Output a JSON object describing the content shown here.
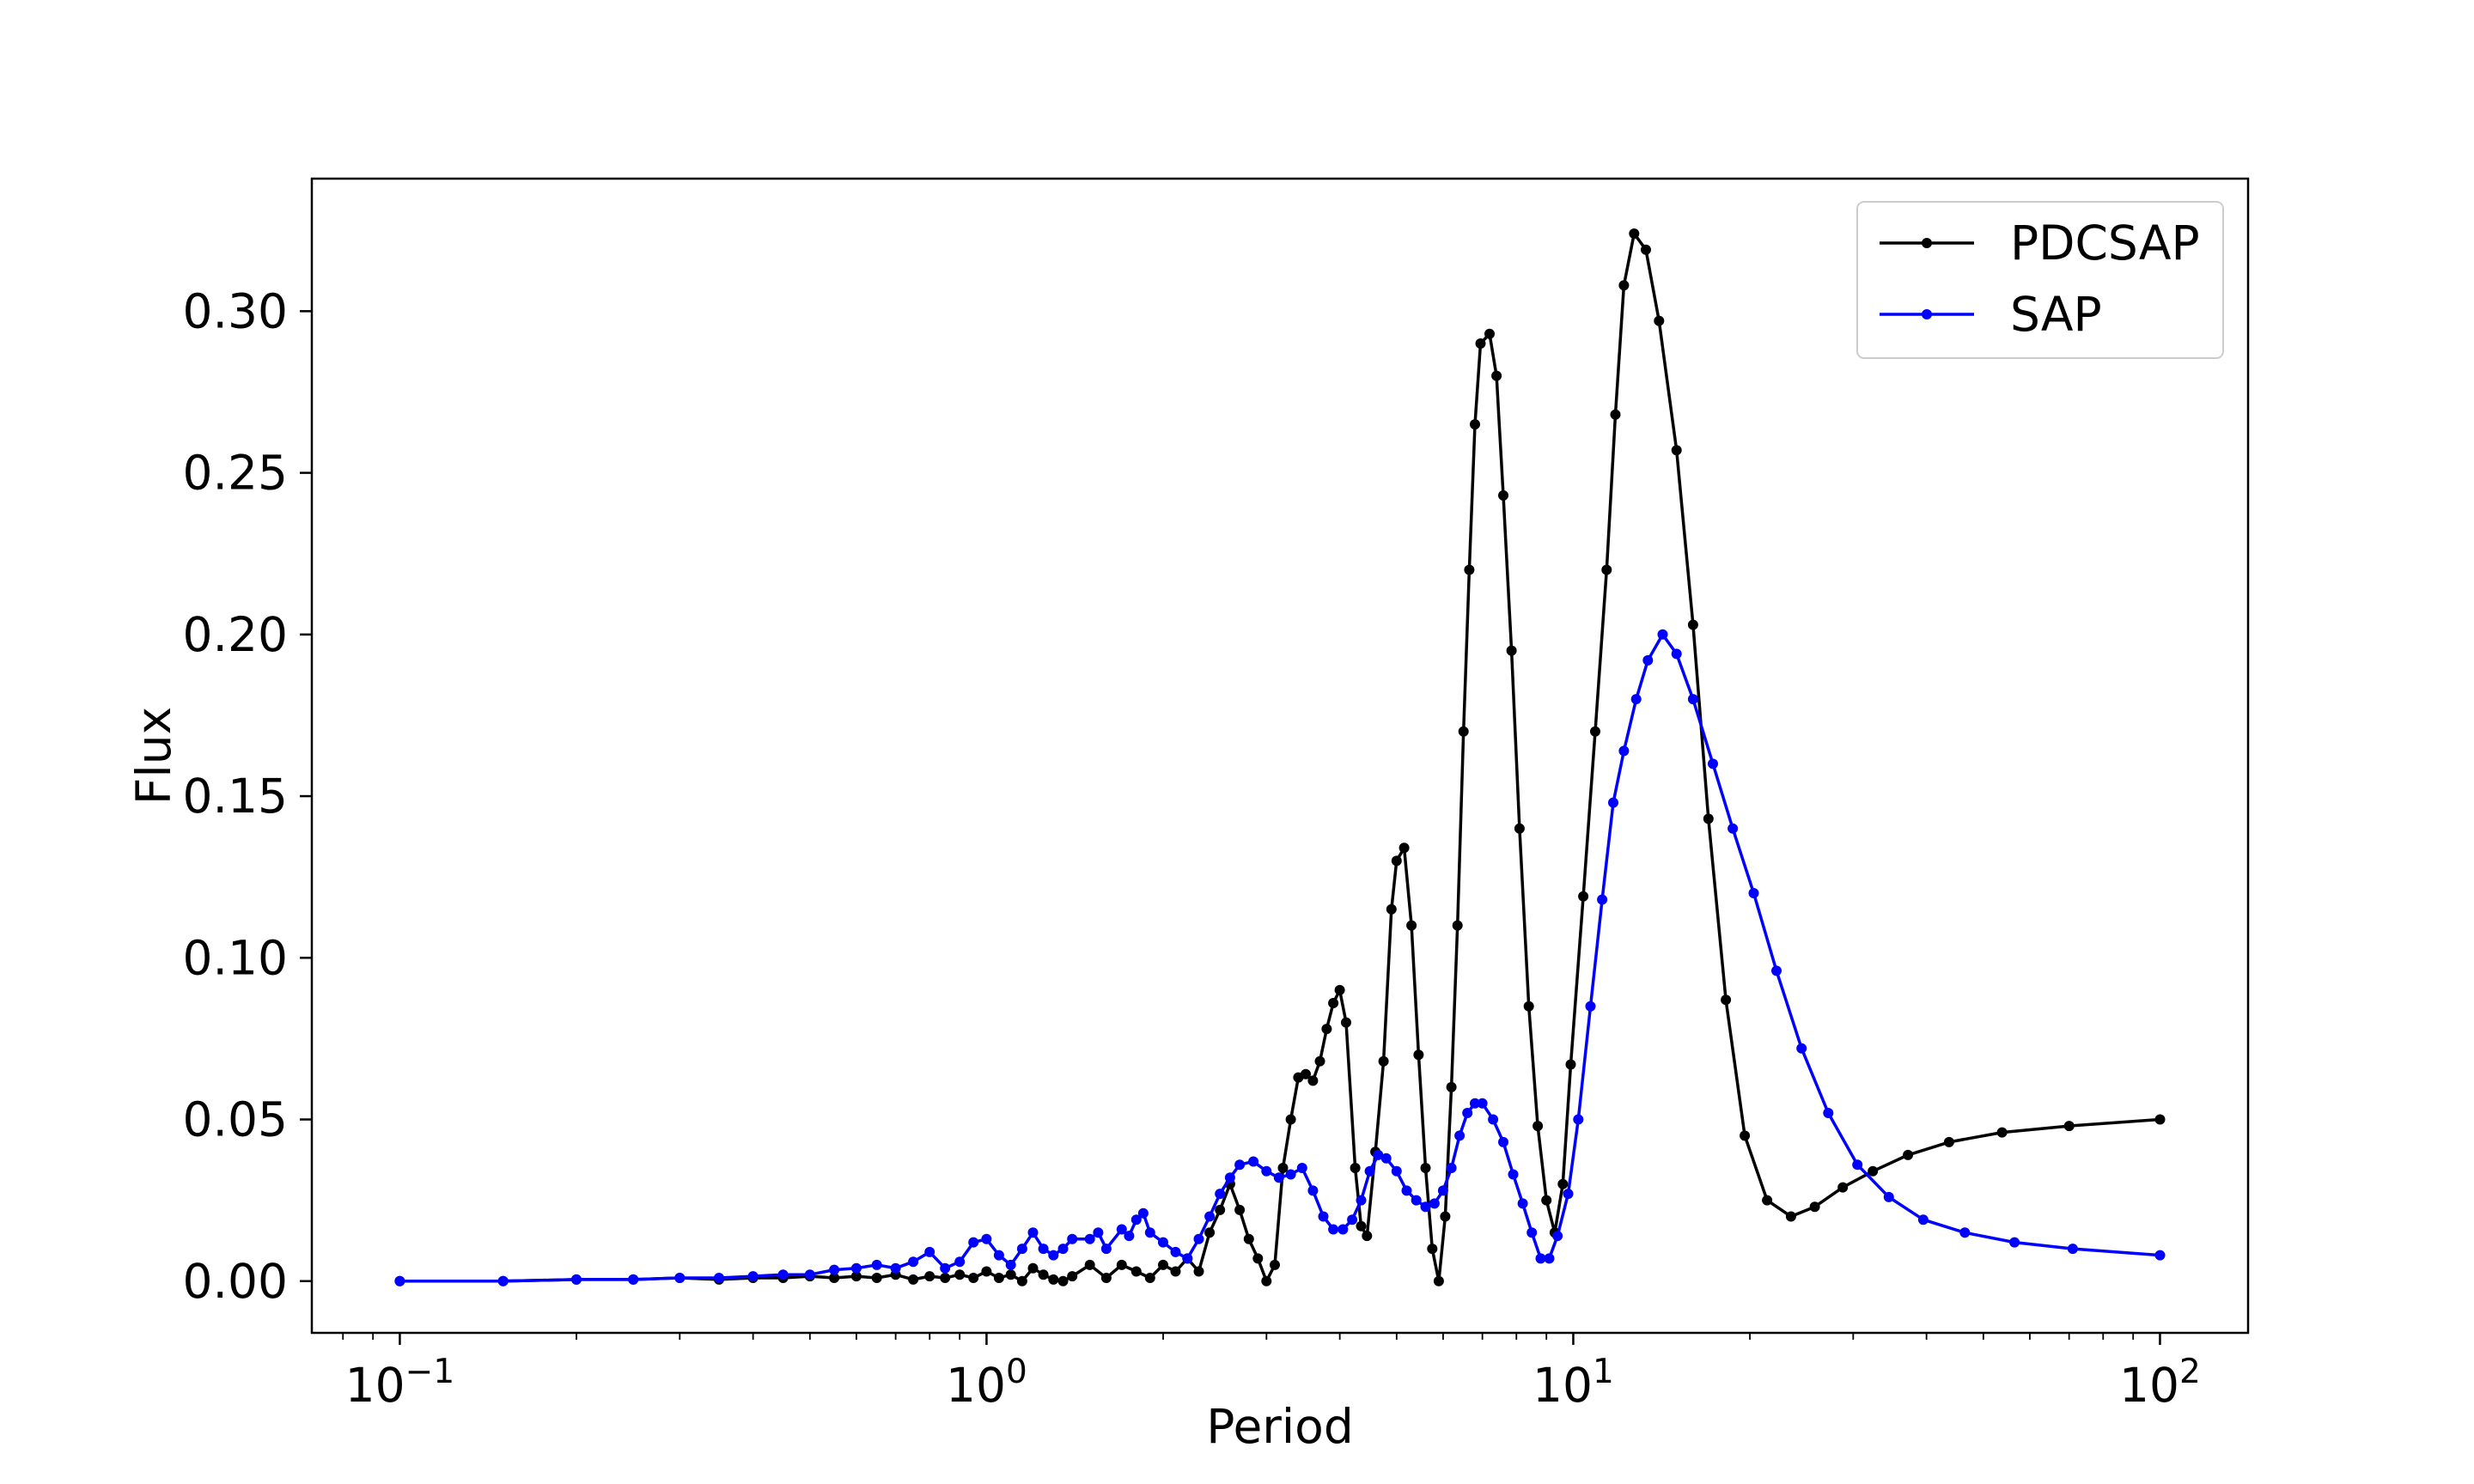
{
  "chart_data": {
    "type": "line",
    "title": "",
    "xlabel": "Period",
    "ylabel": "Flux",
    "xscale": "log",
    "xlim": [
      0.0708,
      141.3
    ],
    "ylim": [
      -0.016,
      0.341
    ],
    "x_ticks": [
      {
        "value": 0.1,
        "base": "10",
        "exp": "−1"
      },
      {
        "value": 1,
        "base": "10",
        "exp": "0"
      },
      {
        "value": 10,
        "base": "10",
        "exp": "1"
      },
      {
        "value": 100,
        "base": "10",
        "exp": "2"
      }
    ],
    "y_ticks": [
      {
        "value": 0.0,
        "label": "0.00"
      },
      {
        "value": 0.05,
        "label": "0.05"
      },
      {
        "value": 0.1,
        "label": "0.10"
      },
      {
        "value": 0.15,
        "label": "0.15"
      },
      {
        "value": 0.2,
        "label": "0.20"
      },
      {
        "value": 0.25,
        "label": "0.25"
      },
      {
        "value": 0.3,
        "label": "0.30"
      }
    ],
    "grid": false,
    "legend_position": "top-right",
    "markers": "dots",
    "series": [
      {
        "name": "PDCSAP",
        "color": "#000000",
        "points": [
          [
            0.1,
            0.0
          ],
          [
            0.15,
            0.0
          ],
          [
            0.2,
            0.0005
          ],
          [
            0.25,
            0.0005
          ],
          [
            0.3,
            0.001
          ],
          [
            0.35,
            0.0005
          ],
          [
            0.4,
            0.001
          ],
          [
            0.45,
            0.001
          ],
          [
            0.5,
            0.0015
          ],
          [
            0.55,
            0.001
          ],
          [
            0.6,
            0.0015
          ],
          [
            0.65,
            0.001
          ],
          [
            0.7,
            0.002
          ],
          [
            0.75,
            0.0005
          ],
          [
            0.8,
            0.0015
          ],
          [
            0.85,
            0.001
          ],
          [
            0.9,
            0.002
          ],
          [
            0.95,
            0.001
          ],
          [
            1.0,
            0.003
          ],
          [
            1.05,
            0.001
          ],
          [
            1.1,
            0.002
          ],
          [
            1.15,
            0.0
          ],
          [
            1.2,
            0.004
          ],
          [
            1.25,
            0.002
          ],
          [
            1.3,
            0.0005
          ],
          [
            1.35,
            0.0
          ],
          [
            1.4,
            0.0015
          ],
          [
            1.5,
            0.005
          ],
          [
            1.6,
            0.001
          ],
          [
            1.7,
            0.005
          ],
          [
            1.8,
            0.003
          ],
          [
            1.9,
            0.001
          ],
          [
            2.0,
            0.005
          ],
          [
            2.1,
            0.003
          ],
          [
            2.2,
            0.007
          ],
          [
            2.3,
            0.003
          ],
          [
            2.4,
            0.015
          ],
          [
            2.5,
            0.022
          ],
          [
            2.6,
            0.03
          ],
          [
            2.7,
            0.022
          ],
          [
            2.8,
            0.013
          ],
          [
            2.9,
            0.007
          ],
          [
            3.0,
            0.0
          ],
          [
            3.1,
            0.005
          ],
          [
            3.2,
            0.035
          ],
          [
            3.3,
            0.05
          ],
          [
            3.4,
            0.063
          ],
          [
            3.5,
            0.064
          ],
          [
            3.6,
            0.062
          ],
          [
            3.7,
            0.068
          ],
          [
            3.8,
            0.078
          ],
          [
            3.9,
            0.086
          ],
          [
            4.0,
            0.09
          ],
          [
            4.1,
            0.08
          ],
          [
            4.25,
            0.035
          ],
          [
            4.35,
            0.017
          ],
          [
            4.45,
            0.014
          ],
          [
            4.6,
            0.04
          ],
          [
            4.75,
            0.068
          ],
          [
            4.9,
            0.115
          ],
          [
            5.0,
            0.13
          ],
          [
            5.15,
            0.134
          ],
          [
            5.3,
            0.11
          ],
          [
            5.45,
            0.07
          ],
          [
            5.6,
            0.035
          ],
          [
            5.75,
            0.01
          ],
          [
            5.9,
            0.0
          ],
          [
            6.05,
            0.02
          ],
          [
            6.2,
            0.06
          ],
          [
            6.35,
            0.11
          ],
          [
            6.5,
            0.17
          ],
          [
            6.65,
            0.22
          ],
          [
            6.8,
            0.265
          ],
          [
            6.95,
            0.29
          ],
          [
            7.2,
            0.293
          ],
          [
            7.4,
            0.28
          ],
          [
            7.6,
            0.243
          ],
          [
            7.85,
            0.195
          ],
          [
            8.1,
            0.14
          ],
          [
            8.4,
            0.085
          ],
          [
            8.7,
            0.048
          ],
          [
            9.0,
            0.025
          ],
          [
            9.3,
            0.015
          ],
          [
            9.6,
            0.03
          ],
          [
            9.9,
            0.067
          ],
          [
            10.4,
            0.119
          ],
          [
            10.9,
            0.17
          ],
          [
            11.4,
            0.22
          ],
          [
            11.8,
            0.268
          ],
          [
            12.2,
            0.308
          ],
          [
            12.7,
            0.324
          ],
          [
            13.3,
            0.319
          ],
          [
            14.0,
            0.297
          ],
          [
            15.0,
            0.257
          ],
          [
            16.0,
            0.203
          ],
          [
            17.0,
            0.143
          ],
          [
            18.2,
            0.087
          ],
          [
            19.6,
            0.045
          ],
          [
            21.4,
            0.025
          ],
          [
            23.5,
            0.02
          ],
          [
            25.8,
            0.023
          ],
          [
            28.8,
            0.029
          ],
          [
            32.4,
            0.034
          ],
          [
            37.2,
            0.039
          ],
          [
            43.7,
            0.043
          ],
          [
            53.8,
            0.046
          ],
          [
            70.0,
            0.048
          ],
          [
            100.0,
            0.05
          ]
        ]
      },
      {
        "name": "SAP",
        "color": "#0000ff",
        "points": [
          [
            0.1,
            0.0
          ],
          [
            0.15,
            0.0
          ],
          [
            0.2,
            0.0005
          ],
          [
            0.25,
            0.0005
          ],
          [
            0.3,
            0.001
          ],
          [
            0.35,
            0.001
          ],
          [
            0.4,
            0.0015
          ],
          [
            0.45,
            0.002
          ],
          [
            0.5,
            0.002
          ],
          [
            0.55,
            0.0035
          ],
          [
            0.6,
            0.004
          ],
          [
            0.65,
            0.005
          ],
          [
            0.7,
            0.004
          ],
          [
            0.75,
            0.006
          ],
          [
            0.8,
            0.009
          ],
          [
            0.85,
            0.004
          ],
          [
            0.9,
            0.006
          ],
          [
            0.95,
            0.012
          ],
          [
            1.0,
            0.013
          ],
          [
            1.05,
            0.008
          ],
          [
            1.1,
            0.005
          ],
          [
            1.15,
            0.01
          ],
          [
            1.2,
            0.015
          ],
          [
            1.25,
            0.01
          ],
          [
            1.3,
            0.008
          ],
          [
            1.35,
            0.01
          ],
          [
            1.4,
            0.013
          ],
          [
            1.5,
            0.013
          ],
          [
            1.55,
            0.015
          ],
          [
            1.6,
            0.01
          ],
          [
            1.7,
            0.016
          ],
          [
            1.75,
            0.014
          ],
          [
            1.8,
            0.019
          ],
          [
            1.85,
            0.021
          ],
          [
            1.9,
            0.015
          ],
          [
            2.0,
            0.012
          ],
          [
            2.1,
            0.009
          ],
          [
            2.2,
            0.007
          ],
          [
            2.3,
            0.013
          ],
          [
            2.4,
            0.02
          ],
          [
            2.5,
            0.027
          ],
          [
            2.6,
            0.032
          ],
          [
            2.7,
            0.036
          ],
          [
            2.85,
            0.037
          ],
          [
            3.0,
            0.034
          ],
          [
            3.15,
            0.032
          ],
          [
            3.3,
            0.033
          ],
          [
            3.45,
            0.035
          ],
          [
            3.6,
            0.028
          ],
          [
            3.75,
            0.02
          ],
          [
            3.9,
            0.016
          ],
          [
            4.05,
            0.016
          ],
          [
            4.2,
            0.019
          ],
          [
            4.35,
            0.025
          ],
          [
            4.5,
            0.034
          ],
          [
            4.65,
            0.039
          ],
          [
            4.8,
            0.038
          ],
          [
            5.0,
            0.034
          ],
          [
            5.2,
            0.028
          ],
          [
            5.4,
            0.025
          ],
          [
            5.6,
            0.023
          ],
          [
            5.8,
            0.024
          ],
          [
            6.0,
            0.028
          ],
          [
            6.2,
            0.035
          ],
          [
            6.4,
            0.045
          ],
          [
            6.6,
            0.052
          ],
          [
            6.8,
            0.055
          ],
          [
            7.0,
            0.055
          ],
          [
            7.3,
            0.05
          ],
          [
            7.6,
            0.043
          ],
          [
            7.9,
            0.033
          ],
          [
            8.2,
            0.024
          ],
          [
            8.5,
            0.015
          ],
          [
            8.8,
            0.007
          ],
          [
            9.1,
            0.007
          ],
          [
            9.4,
            0.014
          ],
          [
            9.8,
            0.027
          ],
          [
            10.2,
            0.05
          ],
          [
            10.7,
            0.085
          ],
          [
            11.2,
            0.118
          ],
          [
            11.7,
            0.148
          ],
          [
            12.2,
            0.164
          ],
          [
            12.8,
            0.18
          ],
          [
            13.4,
            0.192
          ],
          [
            14.2,
            0.2
          ],
          [
            15.0,
            0.194
          ],
          [
            16.0,
            0.18
          ],
          [
            17.3,
            0.16
          ],
          [
            18.7,
            0.14
          ],
          [
            20.3,
            0.12
          ],
          [
            22.2,
            0.096
          ],
          [
            24.5,
            0.072
          ],
          [
            27.2,
            0.052
          ],
          [
            30.5,
            0.036
          ],
          [
            34.5,
            0.026
          ],
          [
            39.5,
            0.019
          ],
          [
            46.5,
            0.015
          ],
          [
            56.5,
            0.012
          ],
          [
            71.0,
            0.01
          ],
          [
            100.0,
            0.008
          ]
        ]
      }
    ]
  }
}
